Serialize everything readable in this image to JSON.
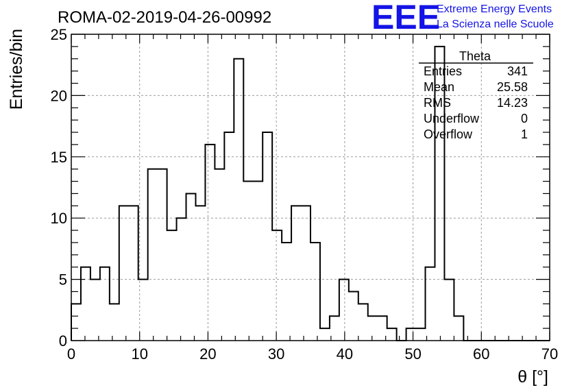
{
  "header": {
    "title": "ROMA-02-2019-04-26-00992",
    "logo_text": "EEE",
    "org_line1": "Extreme Energy Events",
    "org_line2": "La Scienza nelle Scuole"
  },
  "stats": {
    "title": "Theta",
    "rows": [
      {
        "label": "Entries",
        "value": "341"
      },
      {
        "label": "Mean",
        "value": "25.58"
      },
      {
        "label": "RMS",
        "value": "14.23"
      },
      {
        "label": "Underflow",
        "value": "0"
      },
      {
        "label": "Overflow",
        "value": "1"
      }
    ]
  },
  "colors": {
    "logo": "#1414e6",
    "histogram": "#000000",
    "grid": "#999999"
  },
  "chart_data": {
    "type": "bar",
    "title": "ROMA-02-2019-04-26-00992",
    "xlabel": "θ [°]",
    "ylabel": "Entries/bin",
    "xlim": [
      0,
      70
    ],
    "ylim": [
      0,
      25
    ],
    "bin_width": 1.4,
    "values": [
      3,
      6,
      5,
      6,
      3,
      11,
      11,
      5,
      14,
      14,
      9,
      10,
      12,
      11,
      16,
      14,
      17,
      23,
      13,
      13,
      17,
      9,
      8,
      11,
      11,
      8,
      1,
      2,
      5,
      4,
      3,
      2,
      2,
      1,
      0,
      1,
      1,
      6,
      24,
      5,
      2,
      0,
      0,
      0,
      0,
      0,
      0,
      0,
      0,
      0
    ],
    "x_ticks": [
      0,
      10,
      20,
      30,
      40,
      50,
      60,
      70
    ],
    "y_ticks": [
      0,
      5,
      10,
      15,
      20,
      25
    ],
    "grid": true,
    "legend": "top-right"
  }
}
